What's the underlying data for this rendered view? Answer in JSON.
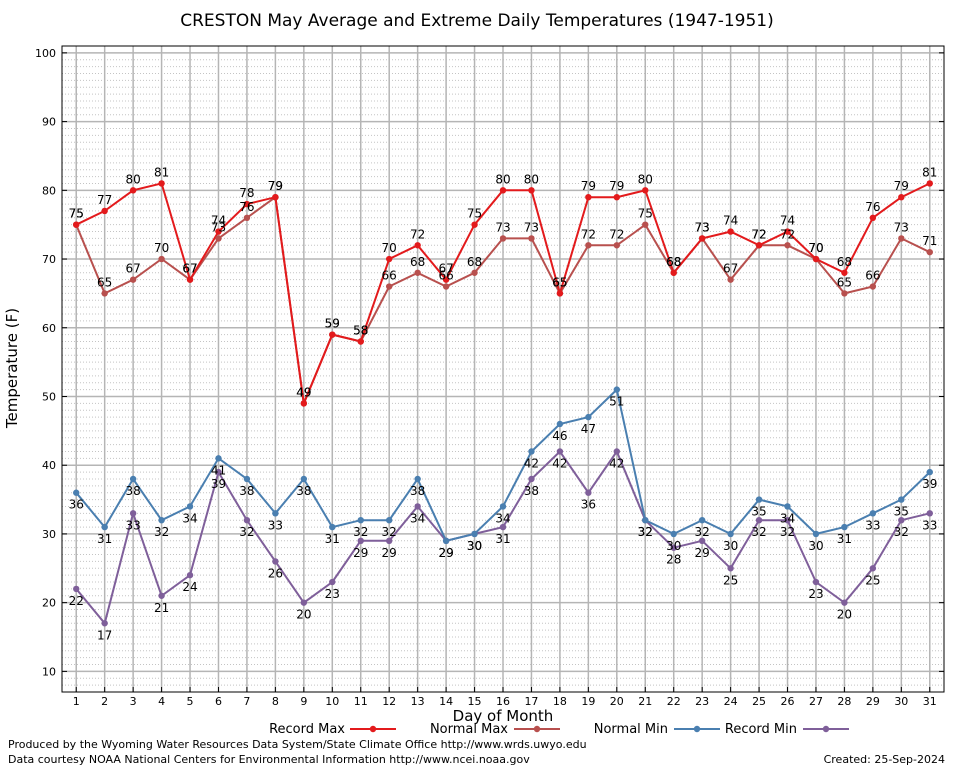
{
  "chart_data": {
    "type": "line",
    "title": "CRESTON May Average and Extreme Daily Temperatures (1947-1951)",
    "xlabel": "Day of Month",
    "ylabel": "Temperature (F)",
    "xlim": [
      0.5,
      31.5
    ],
    "ylim": [
      7,
      101
    ],
    "x_ticks": [
      1,
      2,
      3,
      4,
      5,
      6,
      7,
      8,
      9,
      10,
      11,
      12,
      13,
      14,
      15,
      16,
      17,
      18,
      19,
      20,
      21,
      22,
      23,
      24,
      25,
      26,
      27,
      28,
      29,
      30,
      31
    ],
    "y_ticks": [
      10,
      20,
      30,
      40,
      50,
      60,
      70,
      80,
      90,
      100
    ],
    "grid": true,
    "legend_position": "bottom",
    "x": [
      1,
      2,
      3,
      4,
      5,
      6,
      7,
      8,
      9,
      10,
      11,
      12,
      13,
      14,
      15,
      16,
      17,
      18,
      19,
      20,
      21,
      22,
      23,
      24,
      25,
      26,
      27,
      28,
      29,
      30,
      31
    ],
    "series": [
      {
        "name": "Record Max",
        "color": "#e31a1c",
        "label_side": "above",
        "values": [
          75,
          77,
          80,
          81,
          67,
          74,
          78,
          79,
          49,
          59,
          58,
          70,
          72,
          67,
          75,
          80,
          80,
          65,
          79,
          79,
          80,
          68,
          73,
          74,
          72,
          74,
          70,
          68,
          76,
          79,
          81
        ]
      },
      {
        "name": "Normal Max",
        "color": "#b8504e",
        "label_side": "above",
        "values": [
          75,
          65,
          67,
          70,
          67,
          73,
          76,
          79,
          49,
          59,
          58,
          66,
          68,
          66,
          68,
          73,
          73,
          65,
          72,
          72,
          75,
          68,
          73,
          67,
          72,
          72,
          70,
          65,
          66,
          73,
          71
        ]
      },
      {
        "name": "Normal Min",
        "color": "#4a7fb0",
        "label_side": "below",
        "values": [
          36,
          31,
          38,
          32,
          34,
          41,
          38,
          33,
          38,
          31,
          32,
          32,
          38,
          29,
          30,
          34,
          42,
          46,
          47,
          51,
          32,
          30,
          32,
          30,
          35,
          34,
          30,
          31,
          33,
          35,
          39
        ]
      },
      {
        "name": "Record Min",
        "color": "#7f5f9a",
        "label_side": "below",
        "values": [
          22,
          17,
          33,
          21,
          24,
          39,
          32,
          26,
          20,
          23,
          29,
          29,
          34,
          29,
          30,
          31,
          38,
          42,
          36,
          42,
          32,
          28,
          29,
          25,
          32,
          32,
          23,
          20,
          25,
          32,
          33
        ]
      }
    ]
  },
  "footer": {
    "line1": "Produced by the Wyoming Water Resources Data System/State Climate Office http://www.wrds.uwyo.edu",
    "line2": "Data courtesy NOAA National Centers for Environmental Information http://www.ncei.noaa.gov",
    "created": "Created:  25-Sep-2024"
  }
}
